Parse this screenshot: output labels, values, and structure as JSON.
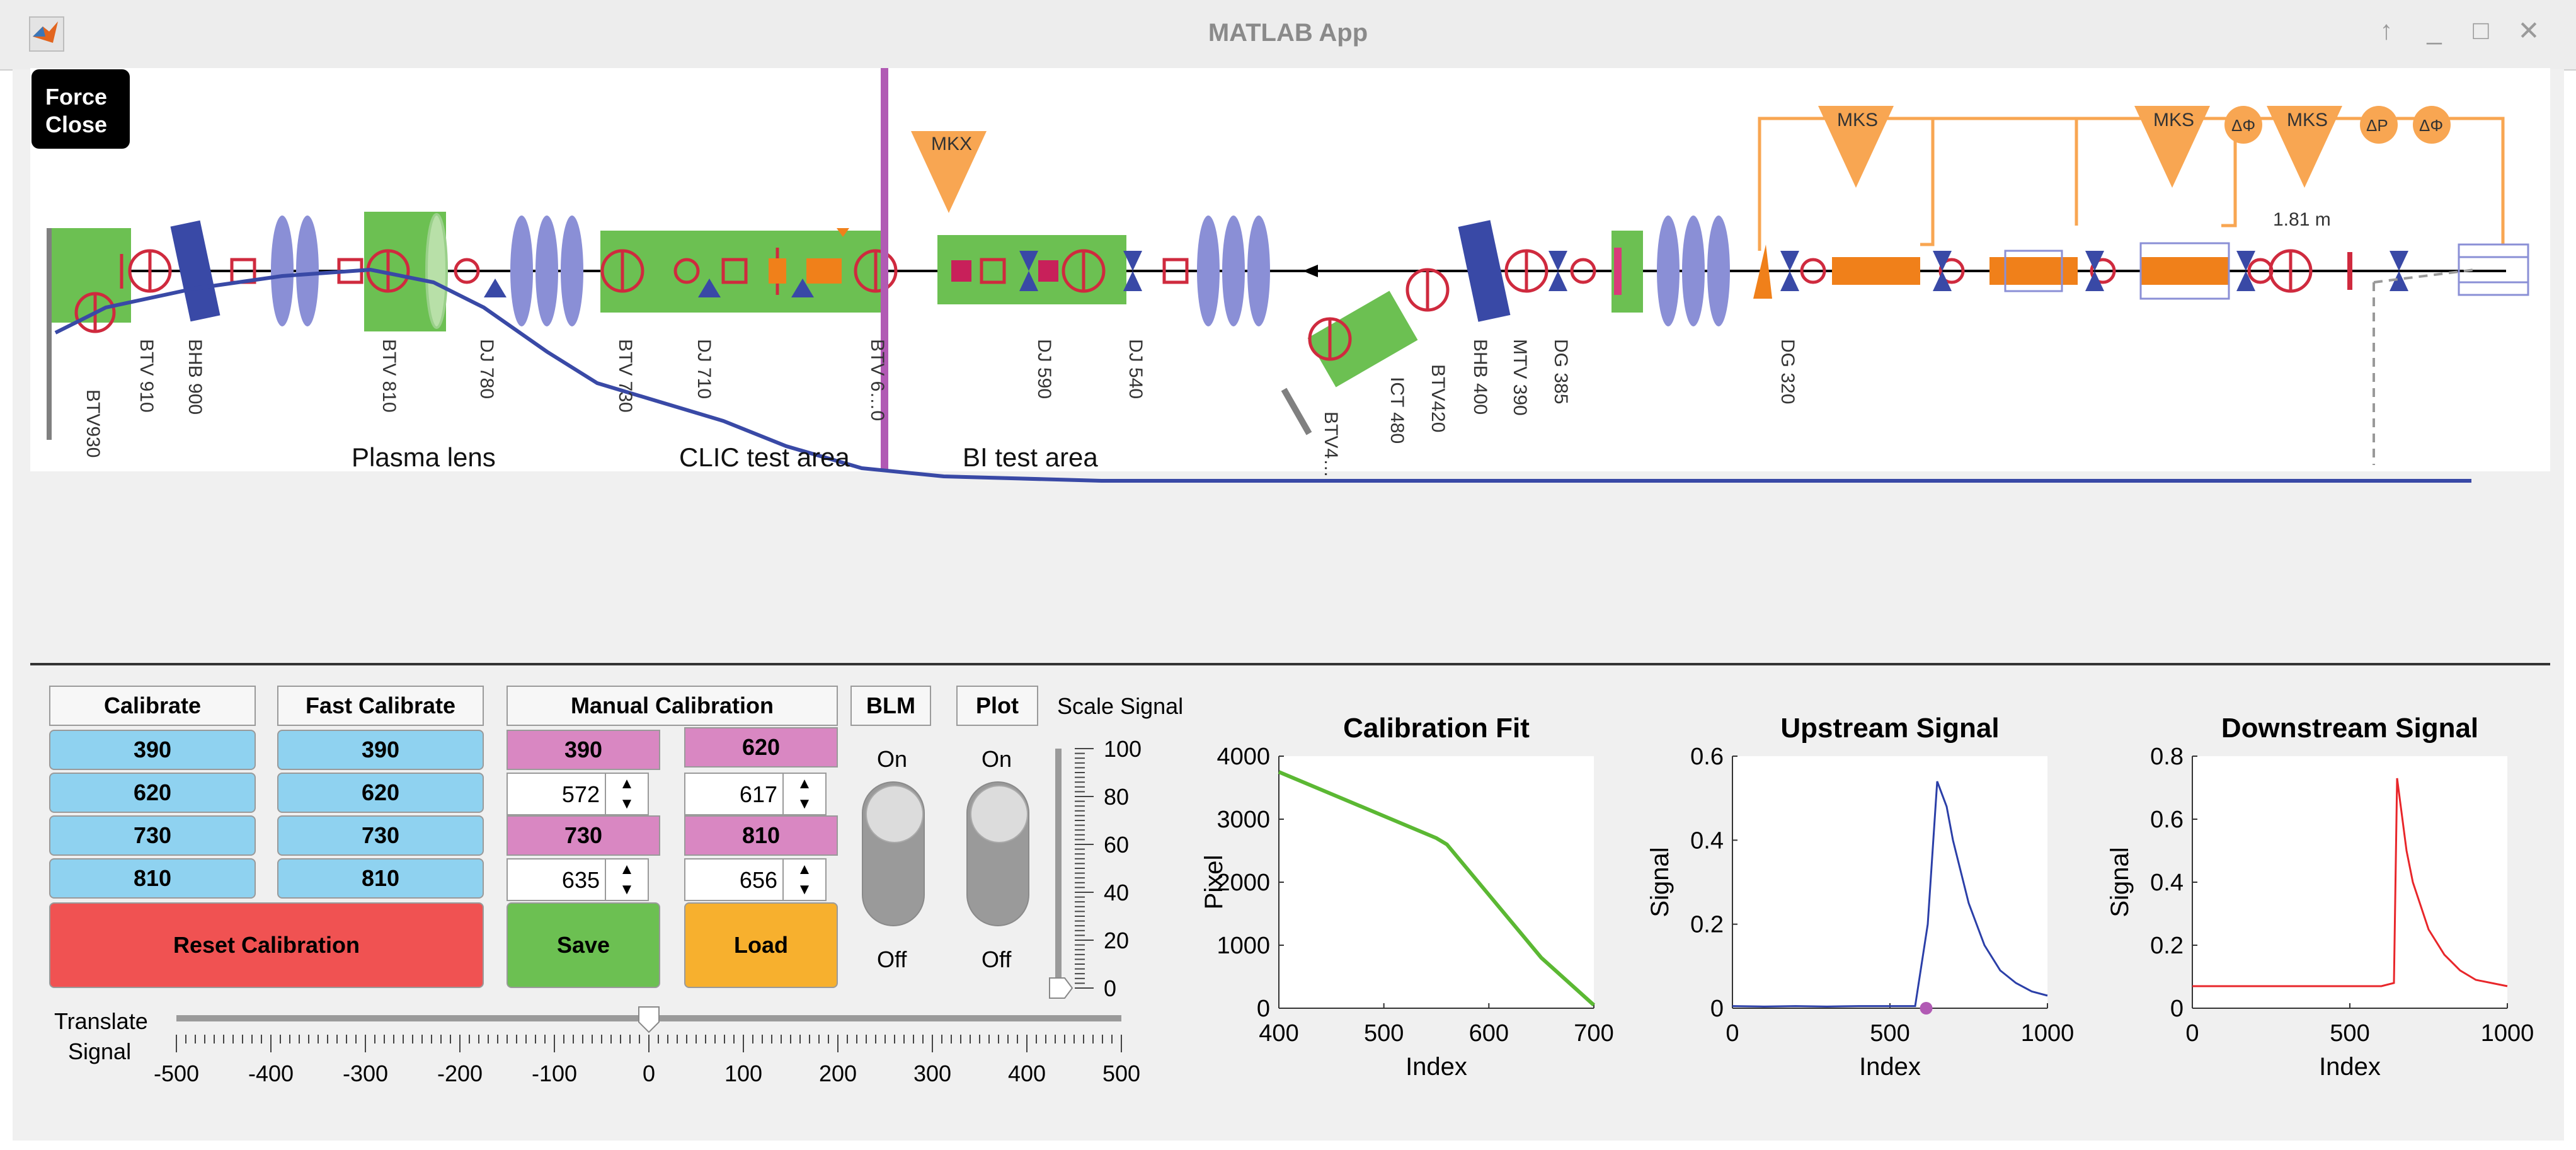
{
  "window": {
    "title": "MATLAB App",
    "controls": [
      "↑",
      "_",
      "□",
      "✕"
    ]
  },
  "force_close_label": "Force Close",
  "diagram": {
    "areas": [
      "Plasma lens",
      "CLIC test area",
      "BI test area"
    ],
    "device_labels": [
      "BTV930",
      "BTV 910",
      "BHB 900",
      "BTV 810",
      "DJ 780",
      "BTV 730",
      "DJ 710",
      "BTV 6…0",
      "DJ 590",
      "DJ 540",
      "BTV4…",
      "ICT 480",
      "BTV420",
      "BHB 400",
      "MTV 390",
      "DG 385",
      "DG 320"
    ],
    "klystrons": [
      "MKX",
      "MKS",
      "MKS",
      "MKS"
    ],
    "phase_labels": [
      "ΔΦ",
      "ΔP",
      "ΔΦ"
    ],
    "distance_label": "1.81 m"
  },
  "calibrate": {
    "label": "Calibrate",
    "values": [
      "390",
      "620",
      "730",
      "810"
    ]
  },
  "fast_calibrate": {
    "label": "Fast Calibrate",
    "values": [
      "390",
      "620",
      "730",
      "810"
    ]
  },
  "reset_calibration": "Reset Calibration",
  "manual_calibration": {
    "label": "Manual Calibration",
    "headers": [
      "390",
      "620",
      "730",
      "810"
    ],
    "spinners": [
      "572",
      "617",
      "635",
      "656"
    ],
    "save": "Save",
    "load": "Load"
  },
  "blm": {
    "label": "BLM",
    "on": "On",
    "off": "Off"
  },
  "plot": {
    "label": "Plot",
    "on": "On",
    "off": "Off"
  },
  "scale_signal": {
    "label": "Scale Signal",
    "ticks": [
      "100",
      "80",
      "60",
      "40",
      "20",
      "0"
    ],
    "value": 0
  },
  "translate_signal": {
    "label_line1": "Translate",
    "label_line2": "Signal",
    "ticks": [
      "-500",
      "-400",
      "-300",
      "-200",
      "-100",
      "0",
      "100",
      "200",
      "300",
      "400",
      "500"
    ],
    "value": 0
  },
  "colors": {
    "beamline": "#3949a6",
    "green_box": "#6cc052",
    "magnet": "#8a8fd6",
    "orange": "#f0801a",
    "klystron": "#f8a652",
    "purple_marker": "#b15ab4",
    "calib_line": "#5bb833",
    "upstream": "#2b3fa8",
    "downstream": "#e8262a"
  },
  "chart_data": [
    {
      "type": "line",
      "title": "Calibration Fit",
      "xlabel": "Index",
      "ylabel": "Pixel",
      "xlim": [
        400,
        700
      ],
      "ylim": [
        0,
        4000
      ],
      "xticks": [
        "400",
        "500",
        "600",
        "700"
      ],
      "yticks": [
        "0",
        "1000",
        "2000",
        "3000",
        "4000"
      ],
      "series": [
        {
          "name": "fit",
          "x": [
            400,
            450,
            500,
            550,
            560,
            600,
            650,
            700
          ],
          "y": [
            3750,
            3400,
            3050,
            2700,
            2600,
            1800,
            800,
            50
          ]
        }
      ]
    },
    {
      "type": "line",
      "title": "Upstream Signal",
      "xlabel": "Index",
      "ylabel": "Signal",
      "xlim": [
        0,
        1000
      ],
      "ylim": [
        0,
        0.6
      ],
      "xticks": [
        "0",
        "500",
        "1000"
      ],
      "yticks": [
        "0",
        "0.2",
        "0.4",
        "0.6"
      ],
      "series": [
        {
          "name": "upstream",
          "x": [
            0,
            100,
            200,
            300,
            400,
            500,
            580,
            620,
            650,
            680,
            700,
            750,
            800,
            850,
            900,
            950,
            1000
          ],
          "y": [
            0.005,
            0.004,
            0.005,
            0.004,
            0.005,
            0.005,
            0.005,
            0.2,
            0.54,
            0.48,
            0.4,
            0.25,
            0.15,
            0.09,
            0.06,
            0.04,
            0.03
          ]
        }
      ],
      "marker": {
        "x": 615,
        "y": 0
      }
    },
    {
      "type": "line",
      "title": "Downstream Signal",
      "xlabel": "Index",
      "ylabel": "Signal",
      "xlim": [
        0,
        1000
      ],
      "ylim": [
        0,
        0.8
      ],
      "xticks": [
        "0",
        "500",
        "1000"
      ],
      "yticks": [
        "0",
        "0.2",
        "0.4",
        "0.6",
        "0.8"
      ],
      "series": [
        {
          "name": "downstream",
          "x": [
            0,
            100,
            200,
            300,
            400,
            500,
            600,
            640,
            650,
            680,
            700,
            750,
            800,
            850,
            900,
            950,
            1000
          ],
          "y": [
            0.07,
            0.07,
            0.07,
            0.07,
            0.07,
            0.07,
            0.07,
            0.08,
            0.73,
            0.5,
            0.4,
            0.25,
            0.17,
            0.12,
            0.09,
            0.08,
            0.07
          ]
        }
      ]
    }
  ]
}
